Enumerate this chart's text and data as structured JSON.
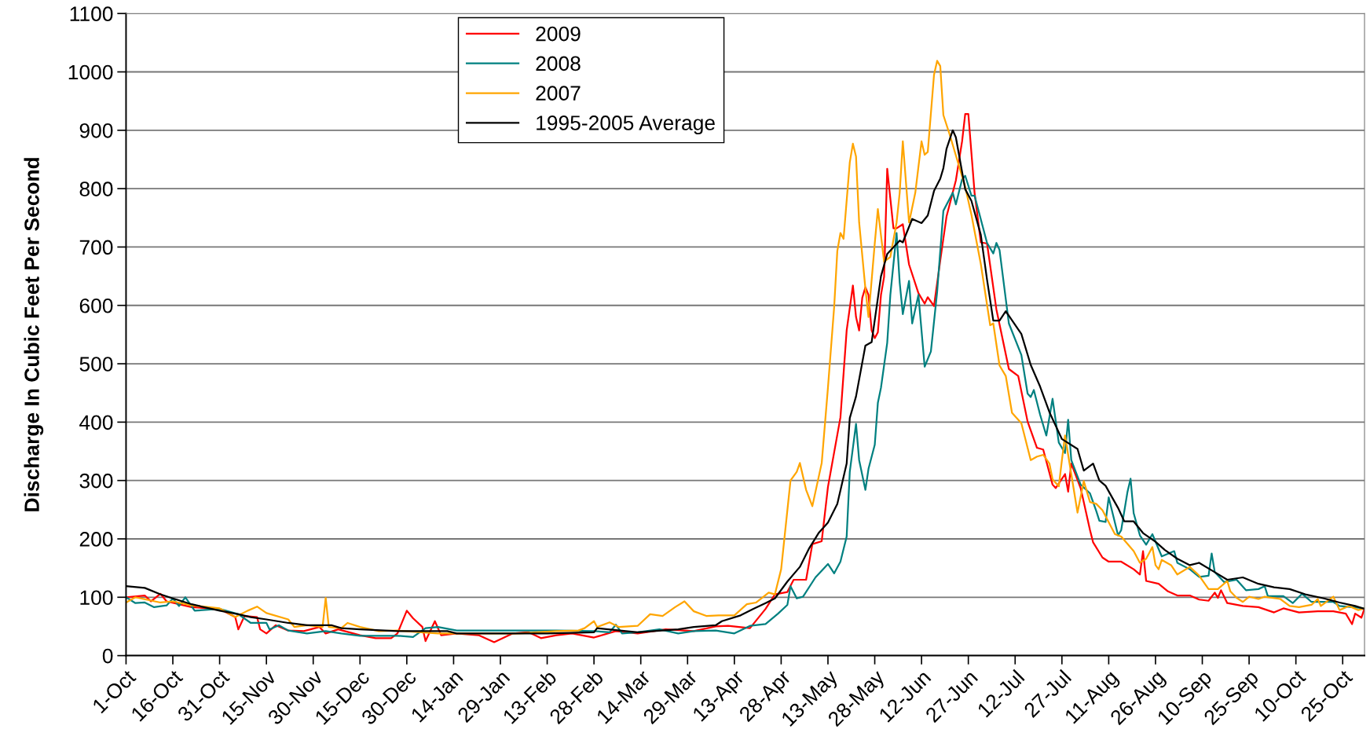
{
  "chart_data": {
    "type": "line",
    "ylabel": "Discharge In Cubic Feet Per Second",
    "xlim": [
      "2007-10-01",
      "2008-11-01"
    ],
    "ylim": [
      0,
      1100
    ],
    "yticks": [
      0,
      100,
      200,
      300,
      400,
      500,
      600,
      700,
      800,
      900,
      1000,
      1100
    ],
    "xticks": [
      {
        "value": "2007-10-01",
        "label": "1-Oct"
      },
      {
        "value": "2007-10-16",
        "label": "16-Oct"
      },
      {
        "value": "2007-10-31",
        "label": "31-Oct"
      },
      {
        "value": "2007-11-15",
        "label": "15-Nov"
      },
      {
        "value": "2007-11-30",
        "label": "30-Nov"
      },
      {
        "value": "2007-12-15",
        "label": "15-Dec"
      },
      {
        "value": "2007-12-30",
        "label": "30-Dec"
      },
      {
        "value": "2008-01-14",
        "label": "14-Jan"
      },
      {
        "value": "2008-01-29",
        "label": "29-Jan"
      },
      {
        "value": "2008-02-13",
        "label": "13-Feb"
      },
      {
        "value": "2008-02-28",
        "label": "28-Feb"
      },
      {
        "value": "2008-03-14",
        "label": "14-Mar"
      },
      {
        "value": "2008-03-29",
        "label": "29-Mar"
      },
      {
        "value": "2008-04-13",
        "label": "13-Apr"
      },
      {
        "value": "2008-04-28",
        "label": "28-Apr"
      },
      {
        "value": "2008-05-13",
        "label": "13-May"
      },
      {
        "value": "2008-05-28",
        "label": "28-May"
      },
      {
        "value": "2008-06-12",
        "label": "12-Jun"
      },
      {
        "value": "2008-06-27",
        "label": "27-Jun"
      },
      {
        "value": "2008-07-12",
        "label": "12-Jul"
      },
      {
        "value": "2008-07-27",
        "label": "27-Jul"
      },
      {
        "value": "2008-08-11",
        "label": "11-Aug"
      },
      {
        "value": "2008-08-26",
        "label": "26-Aug"
      },
      {
        "value": "2008-09-10",
        "label": "10-Sep"
      },
      {
        "value": "2008-09-25",
        "label": "25-Sep"
      },
      {
        "value": "2008-10-10",
        "label": "10-Oct"
      },
      {
        "value": "2008-10-25",
        "label": "25-Oct"
      }
    ],
    "grid": "y",
    "legend": "top",
    "marker": "none",
    "line_style": "solid",
    "series": [
      {
        "name": "2009",
        "color": "#ff0000",
        "x": [
          "2007-10-01",
          "2007-10-07",
          "2007-10-09",
          "2007-10-12",
          "2007-10-14",
          "2007-10-22",
          "2007-10-31",
          "2007-11-05",
          "2007-11-06",
          "2007-11-08",
          "2007-11-12",
          "2007-11-13",
          "2007-11-15",
          "2007-11-18",
          "2007-11-22",
          "2007-11-27",
          "2007-12-02",
          "2007-12-04",
          "2007-12-08",
          "2007-12-15",
          "2007-12-20",
          "2007-12-25",
          "2007-12-27",
          "2007-12-30",
          "2008-01-01",
          "2008-01-04",
          "2008-01-05",
          "2008-01-08",
          "2008-01-10",
          "2008-01-15",
          "2008-01-22",
          "2008-01-27",
          "2008-02-02",
          "2008-02-07",
          "2008-02-11",
          "2008-02-16",
          "2008-02-21",
          "2008-02-28",
          "2008-03-06",
          "2008-03-13",
          "2008-03-22",
          "2008-03-31",
          "2008-04-07",
          "2008-04-11",
          "2008-04-18",
          "2008-04-23",
          "2008-04-26",
          "2008-04-30",
          "2008-05-02",
          "2008-05-06",
          "2008-05-08",
          "2008-05-11",
          "2008-05-13",
          "2008-05-17",
          "2008-05-19",
          "2008-05-21",
          "2008-05-22",
          "2008-05-23",
          "2008-05-24",
          "2008-05-25",
          "2008-05-26",
          "2008-05-27",
          "2008-05-28",
          "2008-05-29",
          "2008-05-30",
          "2008-05-31",
          "2008-06-01",
          "2008-06-03",
          "2008-06-04",
          "2008-06-06",
          "2008-06-08",
          "2008-06-11",
          "2008-06-13",
          "2008-06-14",
          "2008-06-16",
          "2008-06-18",
          "2008-06-20",
          "2008-06-23",
          "2008-06-25",
          "2008-06-26",
          "2008-06-27",
          "2008-06-29",
          "2008-07-01",
          "2008-07-03",
          "2008-07-06",
          "2008-07-10",
          "2008-07-13",
          "2008-07-16",
          "2008-07-19",
          "2008-07-21",
          "2008-07-24",
          "2008-07-25",
          "2008-07-28",
          "2008-07-29",
          "2008-07-30",
          "2008-08-02",
          "2008-08-05",
          "2008-08-06",
          "2008-08-09",
          "2008-08-11",
          "2008-08-15",
          "2008-08-19",
          "2008-08-21",
          "2008-08-22",
          "2008-08-23",
          "2008-08-27",
          "2008-08-30",
          "2008-09-02",
          "2008-09-06",
          "2008-09-09",
          "2008-09-12",
          "2008-09-14",
          "2008-09-15",
          "2008-09-16",
          "2008-09-18",
          "2008-09-23",
          "2008-09-28",
          "2008-10-03",
          "2008-10-06",
          "2008-10-11",
          "2008-10-17",
          "2008-10-22",
          "2008-10-26",
          "2008-10-28",
          "2008-10-29",
          "2008-10-31",
          "2008-11-01"
        ],
        "values": [
          100,
          103,
          93,
          106,
          93,
          83,
          80,
          66,
          45,
          68,
          66,
          45,
          38,
          52,
          43,
          42,
          49,
          38,
          45,
          35,
          30,
          30,
          38,
          77,
          64,
          49,
          25,
          59,
          35,
          38,
          35,
          23,
          38,
          40,
          30,
          35,
          38,
          31,
          42,
          38,
          45,
          42,
          50,
          51,
          47,
          80,
          105,
          109,
          130,
          130,
          191,
          196,
          289,
          408,
          557,
          634,
          580,
          557,
          613,
          631,
          618,
          557,
          544,
          554,
          618,
          649,
          834,
          732,
          732,
          739,
          670,
          621,
          603,
          614,
          599,
          677,
          752,
          814,
          881,
          928,
          928,
          793,
          708,
          706,
          593,
          491,
          479,
          401,
          356,
          353,
          293,
          287,
          311,
          281,
          329,
          287,
          215,
          194,
          168,
          161,
          161,
          148,
          139,
          179,
          128,
          123,
          110,
          103,
          103,
          96,
          94,
          108,
          99,
          112,
          90,
          85,
          83,
          74,
          81,
          74,
          76,
          76,
          72,
          54,
          72,
          65,
          81
        ]
      },
      {
        "name": "2008",
        "color": "#008080",
        "x": [
          "2007-10-01",
          "2007-10-04",
          "2007-10-07",
          "2007-10-10",
          "2007-10-14",
          "2007-10-16",
          "2007-10-18",
          "2007-10-20",
          "2007-10-23",
          "2007-10-31",
          "2007-11-06",
          "2007-11-10",
          "2007-11-15",
          "2007-11-16",
          "2007-11-19",
          "2007-11-22",
          "2007-11-28",
          "2007-12-04",
          "2007-12-09",
          "2007-12-15",
          "2007-12-21",
          "2007-12-27",
          "2008-01-01",
          "2008-01-05",
          "2008-01-09",
          "2008-01-15",
          "2008-02-04",
          "2008-02-16",
          "2008-02-28",
          "2008-03-04",
          "2008-03-06",
          "2008-03-08",
          "2008-03-13",
          "2008-03-20",
          "2008-03-26",
          "2008-03-31",
          "2008-04-07",
          "2008-04-13",
          "2008-04-18",
          "2008-04-23",
          "2008-04-27",
          "2008-04-30",
          "2008-05-01",
          "2008-05-03",
          "2008-05-05",
          "2008-05-09",
          "2008-05-13",
          "2008-05-15",
          "2008-05-17",
          "2008-05-19",
          "2008-05-20",
          "2008-05-22",
          "2008-05-23",
          "2008-05-25",
          "2008-05-26",
          "2008-05-28",
          "2008-05-29",
          "2008-05-30",
          "2008-06-01",
          "2008-06-02",
          "2008-06-04",
          "2008-06-05",
          "2008-06-06",
          "2008-06-08",
          "2008-06-09",
          "2008-06-11",
          "2008-06-13",
          "2008-06-15",
          "2008-06-17",
          "2008-06-19",
          "2008-06-22",
          "2008-06-23",
          "2008-06-25",
          "2008-06-26",
          "2008-06-28",
          "2008-06-29",
          "2008-07-03",
          "2008-07-05",
          "2008-07-06",
          "2008-07-07",
          "2008-07-10",
          "2008-07-14",
          "2008-07-16",
          "2008-07-17",
          "2008-07-18",
          "2008-07-20",
          "2008-07-22",
          "2008-07-24",
          "2008-07-26",
          "2008-07-28",
          "2008-07-29",
          "2008-07-30",
          "2008-08-02",
          "2008-08-05",
          "2008-08-07",
          "2008-08-08",
          "2008-08-10",
          "2008-08-11",
          "2008-08-14",
          "2008-08-15",
          "2008-08-17",
          "2008-08-18",
          "2008-08-19",
          "2008-08-21",
          "2008-08-23",
          "2008-08-25",
          "2008-08-28",
          "2008-09-01",
          "2008-09-02",
          "2008-09-06",
          "2008-09-09",
          "2008-09-12",
          "2008-09-13",
          "2008-09-14",
          "2008-09-17",
          "2008-09-21",
          "2008-09-24",
          "2008-09-28",
          "2008-09-30",
          "2008-10-01",
          "2008-10-06",
          "2008-10-09",
          "2008-10-12",
          "2008-10-15",
          "2008-10-18",
          "2008-10-22",
          "2008-10-24",
          "2008-10-28",
          "2008-11-01"
        ],
        "values": [
          100,
          90,
          91,
          83,
          86,
          98,
          85,
          100,
          77,
          80,
          71,
          56,
          56,
          45,
          52,
          43,
          38,
          42,
          38,
          34,
          34,
          34,
          32,
          47,
          49,
          43,
          43,
          43,
          42,
          40,
          53,
          38,
          40,
          45,
          38,
          42,
          43,
          38,
          51,
          54,
          72,
          87,
          119,
          98,
          101,
          134,
          157,
          141,
          161,
          204,
          315,
          397,
          335,
          284,
          320,
          361,
          433,
          459,
          536,
          618,
          724,
          639,
          585,
          642,
          569,
          618,
          495,
          521,
          623,
          762,
          793,
          773,
          816,
          822,
          788,
          788,
          707,
          689,
          707,
          695,
          569,
          515,
          449,
          443,
          455,
          413,
          377,
          440,
          365,
          347,
          404,
          335,
          293,
          278,
          248,
          231,
          229,
          271,
          206,
          215,
          280,
          303,
          244,
          206,
          190,
          208,
          170,
          179,
          159,
          148,
          135,
          137,
          175,
          143,
          126,
          130,
          112,
          114,
          119,
          102,
          102,
          90,
          106,
          92,
          92,
          92,
          85,
          83,
          81
        ]
      },
      {
        "name": "2007",
        "color": "#ffa500",
        "x": [
          "2007-10-01",
          "2007-10-04",
          "2007-10-12",
          "2007-10-16",
          "2007-10-22",
          "2007-10-31",
          "2007-11-05",
          "2007-11-09",
          "2007-11-12",
          "2007-11-15",
          "2007-11-22",
          "2007-11-24",
          "2007-11-28",
          "2007-12-03",
          "2007-12-04",
          "2007-12-05",
          "2007-12-09",
          "2007-12-11",
          "2007-12-15",
          "2007-12-21",
          "2007-12-27",
          "2008-01-09",
          "2008-01-22",
          "2008-02-04",
          "2008-02-16",
          "2008-02-23",
          "2008-02-25",
          "2008-02-28",
          "2008-02-29",
          "2008-03-04",
          "2008-03-07",
          "2008-03-13",
          "2008-03-17",
          "2008-03-21",
          "2008-03-25",
          "2008-03-28",
          "2008-03-31",
          "2008-04-04",
          "2008-04-08",
          "2008-04-13",
          "2008-04-17",
          "2008-04-20",
          "2008-04-24",
          "2008-04-26",
          "2008-04-28",
          "2008-05-01",
          "2008-05-03",
          "2008-05-04",
          "2008-05-06",
          "2008-05-08",
          "2008-05-11",
          "2008-05-13",
          "2008-05-15",
          "2008-05-16",
          "2008-05-17",
          "2008-05-18",
          "2008-05-20",
          "2008-05-21",
          "2008-05-22",
          "2008-05-23",
          "2008-05-25",
          "2008-05-26",
          "2008-05-28",
          "2008-05-29",
          "2008-05-31",
          "2008-06-02",
          "2008-06-04",
          "2008-06-05",
          "2008-06-06",
          "2008-06-08",
          "2008-06-10",
          "2008-06-12",
          "2008-06-13",
          "2008-06-14",
          "2008-06-16",
          "2008-06-17",
          "2008-06-18",
          "2008-06-19",
          "2008-06-21",
          "2008-06-23",
          "2008-06-26",
          "2008-06-28",
          "2008-07-01",
          "2008-07-04",
          "2008-07-05",
          "2008-07-07",
          "2008-07-09",
          "2008-07-11",
          "2008-07-14",
          "2008-07-17",
          "2008-07-19",
          "2008-07-21",
          "2008-07-23",
          "2008-07-24",
          "2008-07-26",
          "2008-07-27",
          "2008-07-28",
          "2008-07-30",
          "2008-08-01",
          "2008-08-03",
          "2008-08-05",
          "2008-08-07",
          "2008-08-09",
          "2008-08-13",
          "2008-08-15",
          "2008-08-19",
          "2008-08-21",
          "2008-08-23",
          "2008-08-25",
          "2008-08-26",
          "2008-08-27",
          "2008-08-28",
          "2008-08-31",
          "2008-09-02",
          "2008-09-06",
          "2008-09-09",
          "2008-09-12",
          "2008-09-15",
          "2008-09-18",
          "2008-09-19",
          "2008-09-21",
          "2008-09-23",
          "2008-09-25",
          "2008-09-28",
          "2008-09-30",
          "2008-10-05",
          "2008-10-08",
          "2008-10-11",
          "2008-10-15",
          "2008-10-17",
          "2008-10-18",
          "2008-10-22",
          "2008-10-24",
          "2008-10-27",
          "2008-10-30",
          "2008-11-01"
        ],
        "values": [
          91,
          100,
          91,
          93,
          86,
          81,
          66,
          77,
          84,
          73,
          62,
          49,
          52,
          49,
          99,
          49,
          47,
          56,
          49,
          42,
          43,
          38,
          38,
          38,
          42,
          43,
          47,
          59,
          49,
          57,
          49,
          51,
          71,
          68,
          83,
          93,
          76,
          68,
          69,
          69,
          88,
          91,
          108,
          105,
          148,
          300,
          315,
          330,
          284,
          256,
          330,
          459,
          598,
          693,
          724,
          714,
          845,
          877,
          855,
          742,
          629,
          580,
          706,
          765,
          675,
          683,
          742,
          793,
          881,
          742,
          793,
          881,
          858,
          863,
          995,
          1019,
          1010,
          926,
          893,
          857,
          803,
          755,
          671,
          566,
          569,
          497,
          479,
          416,
          398,
          335,
          341,
          344,
          329,
          302,
          290,
          335,
          377,
          311,
          245,
          299,
          263,
          260,
          249,
          208,
          204,
          179,
          159,
          166,
          186,
          155,
          148,
          164,
          155,
          139,
          152,
          137,
          114,
          114,
          128,
          110,
          99,
          92,
          101,
          97,
          101,
          97,
          85,
          83,
          87,
          97,
          85,
          101,
          78,
          85,
          78,
          81
        ]
      },
      {
        "name": "1995-2005 Average",
        "color": "#000000",
        "x": [
          "2007-10-01",
          "2007-10-07",
          "2007-10-12",
          "2007-10-16",
          "2007-10-22",
          "2007-10-31",
          "2007-11-06",
          "2007-11-10",
          "2007-11-15",
          "2007-11-22",
          "2007-11-28",
          "2007-12-06",
          "2007-12-09",
          "2007-12-15",
          "2007-12-27",
          "2008-01-12",
          "2008-01-15",
          "2008-02-13",
          "2008-02-28",
          "2008-02-29",
          "2008-03-13",
          "2008-03-26",
          "2008-03-31",
          "2008-04-07",
          "2008-04-09",
          "2008-04-15",
          "2008-04-19",
          "2008-04-23",
          "2008-04-26",
          "2008-04-30",
          "2008-05-04",
          "2008-05-07",
          "2008-05-10",
          "2008-05-13",
          "2008-05-16",
          "2008-05-19",
          "2008-05-20",
          "2008-05-22",
          "2008-05-25",
          "2008-05-27",
          "2008-05-30",
          "2008-06-01",
          "2008-06-05",
          "2008-06-06",
          "2008-06-09",
          "2008-06-12",
          "2008-06-14",
          "2008-06-16",
          "2008-06-18",
          "2008-06-19",
          "2008-06-20",
          "2008-06-22",
          "2008-06-23",
          "2008-06-26",
          "2008-06-28",
          "2008-07-01",
          "2008-07-03",
          "2008-07-05",
          "2008-07-07",
          "2008-07-09",
          "2008-07-14",
          "2008-07-17",
          "2008-07-20",
          "2008-07-23",
          "2008-07-27",
          "2008-08-01",
          "2008-08-03",
          "2008-08-06",
          "2008-08-08",
          "2008-08-10",
          "2008-08-14",
          "2008-08-16",
          "2008-08-19",
          "2008-08-22",
          "2008-08-26",
          "2008-08-29",
          "2008-09-02",
          "2008-09-06",
          "2008-09-09",
          "2008-09-14",
          "2008-09-18",
          "2008-09-23",
          "2008-09-28",
          "2008-10-03",
          "2008-10-08",
          "2008-10-13",
          "2008-10-19",
          "2008-10-24",
          "2008-10-29",
          "2008-11-01"
        ],
        "values": [
          119,
          116,
          105,
          98,
          88,
          77,
          71,
          66,
          62,
          56,
          52,
          52,
          47,
          45,
          42,
          42,
          38,
          38,
          40,
          47,
          40,
          45,
          49,
          52,
          59,
          69,
          80,
          90,
          98,
          127,
          152,
          184,
          210,
          228,
          260,
          329,
          407,
          444,
          531,
          537,
          650,
          688,
          711,
          708,
          748,
          741,
          754,
          796,
          817,
          835,
          868,
          900,
          888,
          799,
          779,
          721,
          644,
          574,
          574,
          590,
          551,
          498,
          461,
          417,
          371,
          354,
          317,
          329,
          300,
          291,
          253,
          230,
          230,
          210,
          195,
          181,
          166,
          155,
          159,
          143,
          130,
          134,
          123,
          117,
          114,
          105,
          98,
          91,
          85,
          80
        ]
      }
    ]
  }
}
